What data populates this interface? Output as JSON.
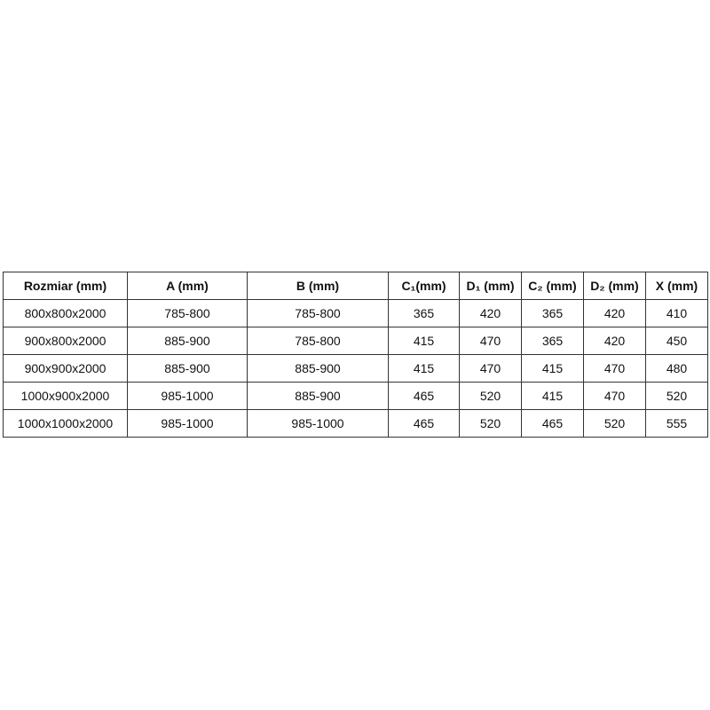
{
  "table": {
    "headers": [
      "Rozmiar (mm)",
      "A (mm)",
      "B (mm)",
      "C₁(mm)",
      "D₁ (mm)",
      "C₂ (mm)",
      "D₂ (mm)",
      "X (mm)"
    ],
    "rows": [
      [
        "800x800x2000",
        "785-800",
        "785-800",
        "365",
        "420",
        "365",
        "420",
        "410"
      ],
      [
        "900x800x2000",
        "885-900",
        "785-800",
        "415",
        "470",
        "365",
        "420",
        "450"
      ],
      [
        "900x900x2000",
        "885-900",
        "885-900",
        "415",
        "470",
        "415",
        "470",
        "480"
      ],
      [
        "1000x900x2000",
        "985-1000",
        "885-900",
        "465",
        "520",
        "415",
        "470",
        "520"
      ],
      [
        "1000x1000x2000",
        "985-1000",
        "985-1000",
        "465",
        "520",
        "465",
        "520",
        "555"
      ]
    ]
  }
}
